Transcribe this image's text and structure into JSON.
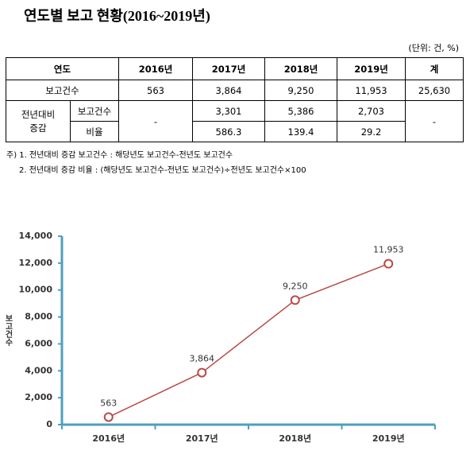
{
  "title": "연도별 보고 현황(2016~2019년)",
  "unit": "(단위: 건, %)",
  "table": {
    "header": [
      "연도",
      "2016년",
      "2017년",
      "2018년",
      "2019년",
      "계"
    ],
    "total_row": [
      "보고건수",
      "563",
      "3,864",
      "9,250",
      "11,953",
      "25,630"
    ],
    "change": {
      "label": "전년대비 증감",
      "col_2016": "-",
      "col_total": "-",
      "rows": [
        {
          "label": "보고건수",
          "values": [
            "3,301",
            "5,386",
            "2,703"
          ]
        },
        {
          "label": "비율",
          "values": [
            "586.3",
            "139.4",
            "29.2"
          ]
        }
      ]
    }
  },
  "notes": [
    "주) 1. 전년대비 증감 보고건수 : 해당년도 보고건수-전년도 보고건수",
    "2. 전년대비 증감 비율 : (해당년도 보고건수-전년도 보고건수)÷전년도 보고건수×100"
  ],
  "chart_data": {
    "type": "line",
    "y_label": "보고건수",
    "categories": [
      "2016년",
      "2017년",
      "2018년",
      "2019년"
    ],
    "values": [
      563,
      3864,
      9250,
      11953
    ],
    "value_labels": [
      "563",
      "3,864",
      "9,250",
      "11,953"
    ],
    "color": "#b94a48",
    "axis_color": "#4f9fbd",
    "ylim": [
      0,
      14000
    ],
    "yticks": [
      0,
      {
        "value": 2000,
        "label": "2,000"
      },
      {
        "value": 4000,
        "label": "4,000"
      },
      {
        "value": 6000,
        "label": "6,000"
      },
      {
        "value": 8000,
        "label": "8,000"
      },
      {
        "value": 10000,
        "label": "10,000"
      },
      {
        "value": 12000,
        "label": "12,000"
      },
      {
        "value": 14000,
        "label": "14,000"
      }
    ]
  }
}
